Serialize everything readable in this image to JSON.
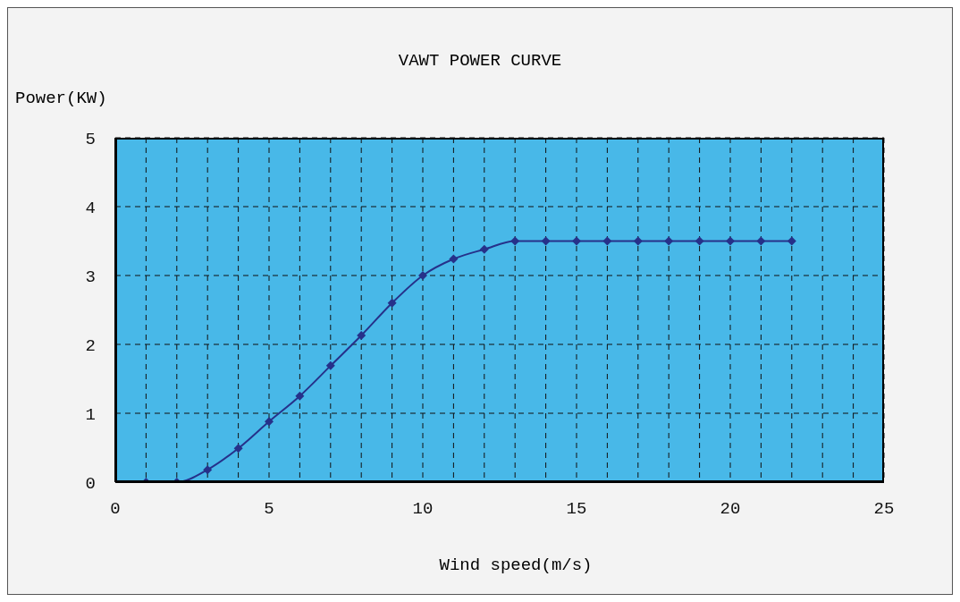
{
  "chart_data": {
    "type": "line",
    "title": "VAWT POWER CURVE",
    "xlabel": "Wind speed(m/s)",
    "ylabel": "Power(KW)",
    "x": [
      1,
      2,
      3,
      4,
      5,
      6,
      7,
      8,
      9,
      10,
      11,
      12,
      13,
      14,
      15,
      16,
      17,
      18,
      19,
      20,
      21,
      22
    ],
    "series": [
      {
        "color": "#26318a",
        "values": [
          0,
          0,
          0.18,
          0.49,
          0.88,
          1.25,
          1.69,
          2.13,
          2.6,
          3,
          3.24,
          3.38,
          3.5,
          3.5,
          3.5,
          3.5,
          3.5,
          3.5,
          3.5,
          3.5,
          3.5,
          3.5
        ]
      }
    ],
    "xlim": [
      0,
      25
    ],
    "xticks": [
      0,
      {
        "value": 1,
        "label": null
      },
      {
        "value": 2,
        "label": null
      },
      {
        "value": 3,
        "label": null
      },
      {
        "value": 4,
        "label": null
      },
      5,
      {
        "value": 6,
        "label": null
      },
      {
        "value": 7,
        "label": null
      },
      {
        "value": 8,
        "label": null
      },
      {
        "value": 9,
        "label": null
      },
      10,
      {
        "value": 11,
        "label": null
      },
      {
        "value": 12,
        "label": null
      },
      {
        "value": 13,
        "label": null
      },
      {
        "value": 14,
        "label": null
      },
      15,
      {
        "value": 16,
        "label": null
      },
      {
        "value": 17,
        "label": null
      },
      {
        "value": 18,
        "label": null
      },
      {
        "value": 19,
        "label": null
      },
      20,
      {
        "value": 21,
        "label": null
      },
      {
        "value": 22,
        "label": null
      },
      {
        "value": 23,
        "label": null
      },
      {
        "value": 24,
        "label": null
      },
      25
    ],
    "ylim": [
      0,
      5
    ],
    "yticks": [
      0,
      1,
      2,
      3,
      4,
      5
    ],
    "grid": true,
    "marker": "diamond",
    "line_style": "solid"
  }
}
